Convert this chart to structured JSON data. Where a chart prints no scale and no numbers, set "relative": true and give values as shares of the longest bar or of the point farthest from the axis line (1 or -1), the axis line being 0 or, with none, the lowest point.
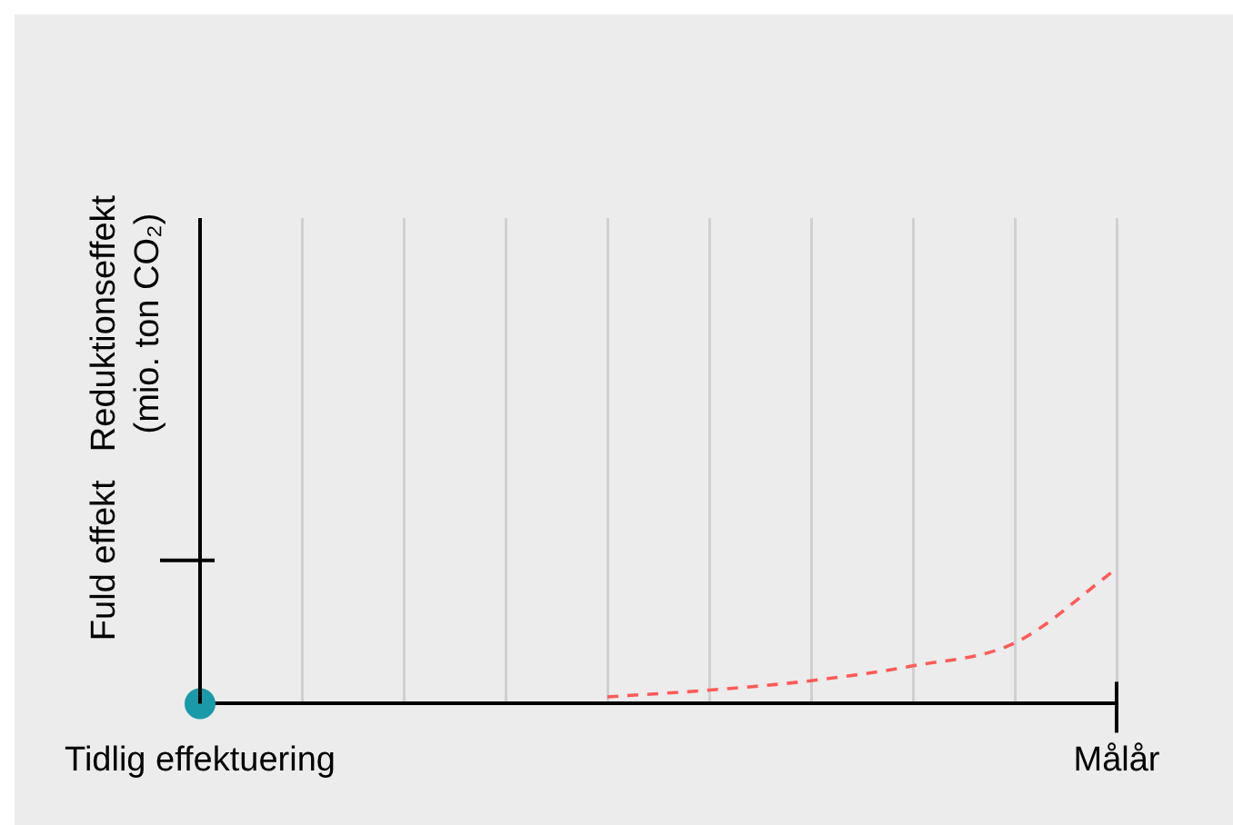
{
  "chart_data": {
    "type": "line",
    "relative": true,
    "ylabel": "Reduktionseffekt (mio. ton CO₂)",
    "categories": [
      "Tidlig effektuering",
      null,
      null,
      null,
      null,
      null,
      null,
      null,
      null,
      "Målår"
    ],
    "series": [
      {
        "color": "#ff5a5a",
        "line_style": "dashed",
        "marker": "none",
        "values": [
          null,
          null,
          null,
          null,
          0.05,
          0.1,
          0.17,
          0.28,
          0.45,
          1.0
        ]
      },
      {
        "type": "scatter",
        "color": "#1a9aa8",
        "marker": "circle",
        "values": [
          0,
          null,
          null,
          null,
          null,
          null,
          null,
          null,
          null,
          null
        ]
      }
    ],
    "annotations": [
      "Fuld effekt"
    ],
    "grid": "x",
    "legend": false
  }
}
